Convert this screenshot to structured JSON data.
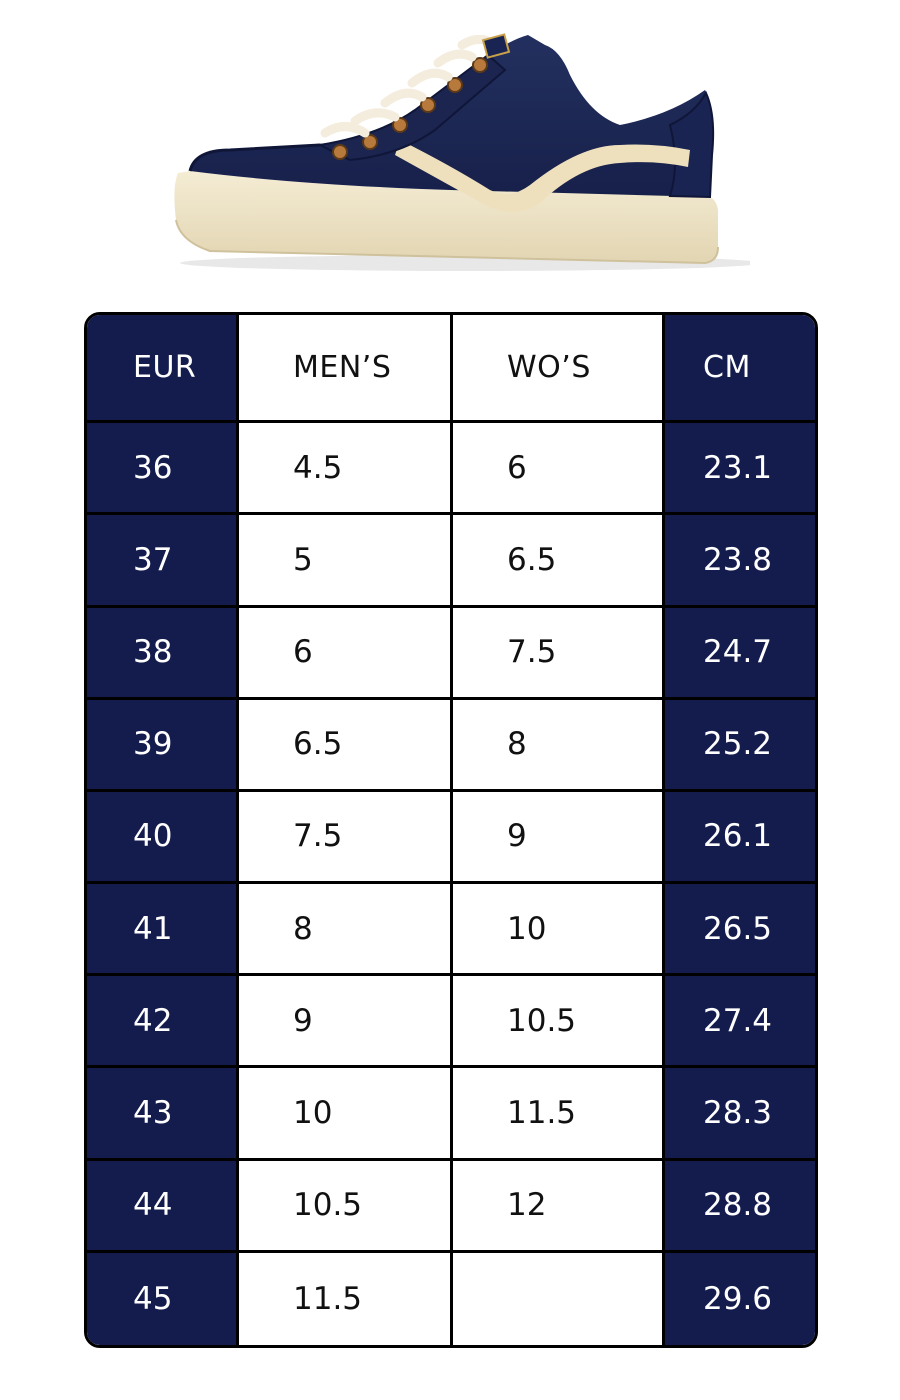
{
  "colors": {
    "navy": "#141c4d",
    "border": "#000000",
    "sole": "#efe5c9",
    "stripe": "#efe0bd"
  },
  "product_image": {
    "icon": "sneaker-icon"
  },
  "size_chart": {
    "headers": {
      "eur": "EUR",
      "men": "MEN’S",
      "wos": "WO’S",
      "cm": "CM"
    },
    "rows": [
      {
        "eur": "36",
        "men": "4.5",
        "wos": "6",
        "cm": "23.1"
      },
      {
        "eur": "37",
        "men": "5",
        "wos": "6.5",
        "cm": "23.8"
      },
      {
        "eur": "38",
        "men": "6",
        "wos": "7.5",
        "cm": "24.7"
      },
      {
        "eur": "39",
        "men": "6.5",
        "wos": "8",
        "cm": "25.2"
      },
      {
        "eur": "40",
        "men": "7.5",
        "wos": "9",
        "cm": "26.1"
      },
      {
        "eur": "41",
        "men": "8",
        "wos": "10",
        "cm": "26.5"
      },
      {
        "eur": "42",
        "men": "9",
        "wos": "10.5",
        "cm": "27.4"
      },
      {
        "eur": "43",
        "men": "10",
        "wos": "11.5",
        "cm": "28.3"
      },
      {
        "eur": "44",
        "men": "10.5",
        "wos": "12",
        "cm": "28.8"
      },
      {
        "eur": "45",
        "men": "11.5",
        "wos": "",
        "cm": "29.6"
      }
    ]
  }
}
